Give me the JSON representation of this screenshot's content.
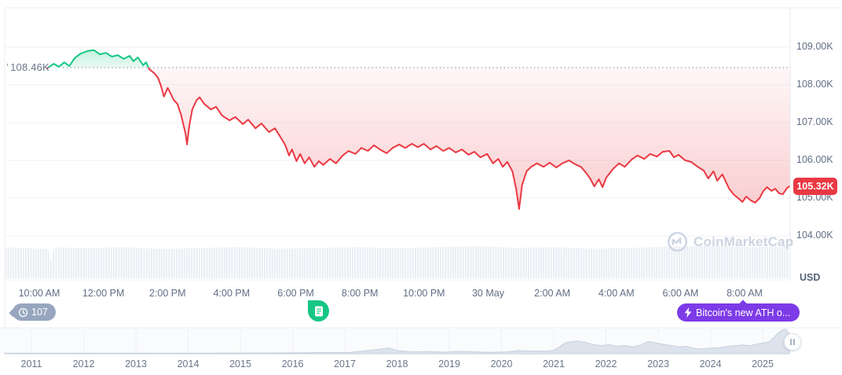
{
  "overlays": {
    "baseline_marker": "’",
    "baseline_label": "108.46K",
    "price_badge": "105.32K",
    "unit_label": "USD",
    "history_badge": "107",
    "ath_badge": "Bitcoin's new ATH o...",
    "watermark": "CoinMarketCap",
    "icons": {
      "history": "clock-icon",
      "news": "document-icon",
      "ath": "lightning-icon",
      "handle": "drag-handle-icon",
      "watermark": "coinmarketcap-logo-icon"
    }
  },
  "colors": {
    "up_green": "#16c784",
    "down_red": "#ea3943",
    "ath_purple": "#7d3be8",
    "history_grey": "#97a6be",
    "axis_text": "#616e85",
    "grid": "#f0f2f6",
    "volume_bar": "#e8edf3",
    "minimap_fill": "#dde3ed",
    "watermark_grey": "#ccd4e2"
  },
  "chart_data": {
    "type": "line",
    "title": "Bitcoin price intraday (BTC/USD) with previous-close baseline",
    "unit": "USD",
    "baseline_value_k": 108.46,
    "last_price_k": 105.32,
    "ylim_k": [
      103.5,
      110
    ],
    "y_axis": {
      "labels": [
        "109.00K",
        "108.00K",
        "107.00K",
        "106.00K",
        "105.00K",
        "104.00K"
      ],
      "values_k": [
        109,
        108,
        107,
        106,
        105,
        104
      ]
    },
    "x_axis": {
      "labels": [
        "10:00 AM",
        "12:00 PM",
        "2:00 PM",
        "4:00 PM",
        "6:00 PM",
        "8:00 PM",
        "10:00 PM",
        "30 May",
        "2:00 AM",
        "4:00 AM",
        "6:00 AM",
        "8:00 AM"
      ]
    },
    "price_points": [
      [
        0.002,
        108.44
      ],
      [
        0.011,
        108.56
      ],
      [
        0.018,
        108.48
      ],
      [
        0.025,
        108.6
      ],
      [
        0.032,
        108.5
      ],
      [
        0.039,
        108.71
      ],
      [
        0.047,
        108.83
      ],
      [
        0.057,
        108.9
      ],
      [
        0.065,
        108.92
      ],
      [
        0.073,
        108.81
      ],
      [
        0.081,
        108.85
      ],
      [
        0.089,
        108.75
      ],
      [
        0.097,
        108.79
      ],
      [
        0.105,
        108.69
      ],
      [
        0.113,
        108.77
      ],
      [
        0.118,
        108.63
      ],
      [
        0.124,
        108.73
      ],
      [
        0.131,
        108.52
      ],
      [
        0.135,
        108.6
      ],
      [
        0.139,
        108.42
      ],
      [
        0.146,
        108.31
      ],
      [
        0.151,
        108.19
      ],
      [
        0.155,
        107.98
      ],
      [
        0.159,
        107.69
      ],
      [
        0.164,
        107.92
      ],
      [
        0.168,
        107.77
      ],
      [
        0.172,
        107.6
      ],
      [
        0.177,
        107.5
      ],
      [
        0.182,
        107.21
      ],
      [
        0.188,
        106.71
      ],
      [
        0.19,
        106.42
      ],
      [
        0.193,
        106.92
      ],
      [
        0.197,
        107.35
      ],
      [
        0.203,
        107.6
      ],
      [
        0.207,
        107.67
      ],
      [
        0.213,
        107.5
      ],
      [
        0.222,
        107.35
      ],
      [
        0.229,
        107.42
      ],
      [
        0.237,
        107.19
      ],
      [
        0.247,
        107.06
      ],
      [
        0.255,
        107.15
      ],
      [
        0.265,
        106.96
      ],
      [
        0.272,
        107.08
      ],
      [
        0.282,
        106.85
      ],
      [
        0.29,
        106.98
      ],
      [
        0.3,
        106.75
      ],
      [
        0.308,
        106.85
      ],
      [
        0.316,
        106.6
      ],
      [
        0.322,
        106.4
      ],
      [
        0.327,
        106.13
      ],
      [
        0.331,
        106.29
      ],
      [
        0.337,
        105.98
      ],
      [
        0.342,
        106.17
      ],
      [
        0.348,
        105.92
      ],
      [
        0.354,
        106.08
      ],
      [
        0.361,
        105.83
      ],
      [
        0.367,
        105.98
      ],
      [
        0.373,
        105.88
      ],
      [
        0.382,
        106.04
      ],
      [
        0.39,
        105.92
      ],
      [
        0.399,
        106.13
      ],
      [
        0.407,
        106.25
      ],
      [
        0.416,
        106.17
      ],
      [
        0.424,
        106.33
      ],
      [
        0.433,
        106.25
      ],
      [
        0.441,
        106.4
      ],
      [
        0.449,
        106.29
      ],
      [
        0.458,
        106.19
      ],
      [
        0.466,
        106.33
      ],
      [
        0.475,
        106.42
      ],
      [
        0.483,
        106.33
      ],
      [
        0.492,
        106.44
      ],
      [
        0.5,
        106.35
      ],
      [
        0.508,
        106.44
      ],
      [
        0.517,
        106.29
      ],
      [
        0.525,
        106.38
      ],
      [
        0.534,
        106.25
      ],
      [
        0.542,
        106.33
      ],
      [
        0.551,
        106.21
      ],
      [
        0.559,
        106.29
      ],
      [
        0.568,
        106.15
      ],
      [
        0.576,
        106.23
      ],
      [
        0.584,
        106.08
      ],
      [
        0.593,
        106.17
      ],
      [
        0.601,
        105.92
      ],
      [
        0.608,
        106.04
      ],
      [
        0.614,
        105.83
      ],
      [
        0.62,
        105.96
      ],
      [
        0.627,
        105.71
      ],
      [
        0.632,
        105.25
      ],
      [
        0.636,
        104.71
      ],
      [
        0.64,
        105.35
      ],
      [
        0.646,
        105.71
      ],
      [
        0.652,
        105.83
      ],
      [
        0.66,
        105.92
      ],
      [
        0.669,
        105.83
      ],
      [
        0.677,
        105.94
      ],
      [
        0.686,
        105.81
      ],
      [
        0.694,
        105.92
      ],
      [
        0.703,
        106.0
      ],
      [
        0.711,
        105.9
      ],
      [
        0.719,
        105.83
      ],
      [
        0.726,
        105.67
      ],
      [
        0.732,
        105.5
      ],
      [
        0.737,
        105.31
      ],
      [
        0.743,
        105.5
      ],
      [
        0.748,
        105.29
      ],
      [
        0.753,
        105.54
      ],
      [
        0.762,
        105.77
      ],
      [
        0.77,
        105.92
      ],
      [
        0.778,
        105.83
      ],
      [
        0.787,
        106.02
      ],
      [
        0.795,
        106.13
      ],
      [
        0.804,
        106.04
      ],
      [
        0.812,
        106.17
      ],
      [
        0.821,
        106.1
      ],
      [
        0.829,
        106.23
      ],
      [
        0.838,
        106.25
      ],
      [
        0.844,
        106.08
      ],
      [
        0.85,
        106.15
      ],
      [
        0.859,
        106.0
      ],
      [
        0.867,
        105.96
      ],
      [
        0.876,
        105.83
      ],
      [
        0.884,
        105.73
      ],
      [
        0.89,
        105.52
      ],
      [
        0.897,
        105.71
      ],
      [
        0.902,
        105.46
      ],
      [
        0.909,
        105.63
      ],
      [
        0.918,
        105.25
      ],
      [
        0.924,
        105.1
      ],
      [
        0.93,
        105.0
      ],
      [
        0.936,
        104.9
      ],
      [
        0.941,
        105.04
      ],
      [
        0.947,
        104.94
      ],
      [
        0.953,
        104.88
      ],
      [
        0.959,
        105.0
      ],
      [
        0.964,
        105.19
      ],
      [
        0.969,
        105.29
      ],
      [
        0.975,
        105.19
      ],
      [
        0.98,
        105.25
      ],
      [
        0.985,
        105.13
      ],
      [
        0.99,
        105.1
      ],
      [
        0.996,
        105.27
      ],
      [
        1.0,
        105.32
      ]
    ],
    "volume_profile": [
      [
        0,
        0.9
      ],
      [
        0.04,
        0.86
      ],
      [
        0.054,
        0.86
      ],
      [
        0.058,
        0.45
      ],
      [
        0.062,
        0.9
      ],
      [
        0.1,
        0.87
      ],
      [
        0.15,
        0.9
      ],
      [
        0.2,
        0.85
      ],
      [
        0.25,
        0.88
      ],
      [
        0.3,
        0.9
      ],
      [
        0.35,
        0.86
      ],
      [
        0.4,
        0.88
      ],
      [
        0.45,
        0.9
      ],
      [
        0.5,
        0.87
      ],
      [
        0.55,
        0.9
      ],
      [
        0.6,
        0.93
      ],
      [
        0.65,
        0.88
      ],
      [
        0.7,
        0.9
      ],
      [
        0.75,
        0.86
      ],
      [
        0.8,
        0.88
      ],
      [
        0.85,
        0.92
      ],
      [
        0.9,
        0.94
      ],
      [
        0.95,
        0.9
      ],
      [
        1.0,
        0.93
      ]
    ],
    "minimap": {
      "years": [
        "2011",
        "2012",
        "2013",
        "2014",
        "2015",
        "2016",
        "2017",
        "2018",
        "2019",
        "2020",
        "2021",
        "2022",
        "2023",
        "2024",
        "2025"
      ],
      "points": [
        [
          0,
          0.02
        ],
        [
          0.25,
          0.02
        ],
        [
          0.35,
          0.03
        ],
        [
          0.44,
          0.05
        ],
        [
          0.475,
          0.16
        ],
        [
          0.49,
          0.22
        ],
        [
          0.5,
          0.12
        ],
        [
          0.52,
          0.07
        ],
        [
          0.54,
          0.08
        ],
        [
          0.56,
          0.06
        ],
        [
          0.58,
          0.09
        ],
        [
          0.6,
          0.07
        ],
        [
          0.62,
          0.05
        ],
        [
          0.64,
          0.07
        ],
        [
          0.655,
          0.12
        ],
        [
          0.67,
          0.1
        ],
        [
          0.69,
          0.1
        ],
        [
          0.7,
          0.13
        ],
        [
          0.715,
          0.42
        ],
        [
          0.73,
          0.48
        ],
        [
          0.74,
          0.43
        ],
        [
          0.75,
          0.35
        ],
        [
          0.76,
          0.3
        ],
        [
          0.77,
          0.34
        ],
        [
          0.78,
          0.28
        ],
        [
          0.79,
          0.31
        ],
        [
          0.8,
          0.26
        ],
        [
          0.81,
          0.33
        ],
        [
          0.82,
          0.46
        ],
        [
          0.83,
          0.41
        ],
        [
          0.84,
          0.35
        ],
        [
          0.85,
          0.3
        ],
        [
          0.86,
          0.26
        ],
        [
          0.87,
          0.28
        ],
        [
          0.875,
          0.22
        ],
        [
          0.885,
          0.18
        ],
        [
          0.9,
          0.21
        ],
        [
          0.91,
          0.23
        ],
        [
          0.92,
          0.27
        ],
        [
          0.93,
          0.3
        ],
        [
          0.94,
          0.33
        ],
        [
          0.95,
          0.3
        ],
        [
          0.96,
          0.37
        ],
        [
          0.97,
          0.42
        ],
        [
          0.975,
          0.46
        ],
        [
          0.98,
          0.6
        ],
        [
          0.985,
          0.76
        ],
        [
          0.99,
          0.88
        ],
        [
          0.995,
          0.92
        ],
        [
          1.0,
          0.76
        ]
      ]
    }
  }
}
